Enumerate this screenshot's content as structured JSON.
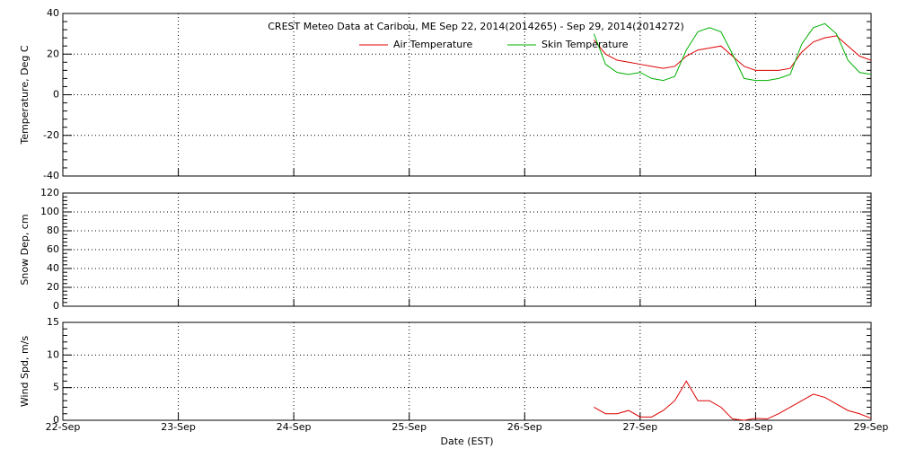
{
  "chart_data": [
    {
      "type": "line",
      "title": "CREST Meteo Data at Caribou, ME   Sep 22, 2014(2014265) - Sep 29, 2014(2014272)",
      "ylabel": "Temperature, Deg C",
      "xlim": [
        22,
        29
      ],
      "xticks": [
        22,
        23,
        24,
        25,
        26,
        27,
        28,
        29
      ],
      "ylim": [
        -40,
        40
      ],
      "yticks": [
        -40,
        -20,
        0,
        20,
        40
      ],
      "grid": true,
      "legend": "upper center",
      "x": [
        26.6,
        26.7,
        26.8,
        26.9,
        27.0,
        27.1,
        27.2,
        27.3,
        27.4,
        27.5,
        27.6,
        27.7,
        27.8,
        27.9,
        28.0,
        28.1,
        28.2,
        28.3,
        28.4,
        28.5,
        28.6,
        28.7,
        28.8,
        28.9,
        29.0
      ],
      "series": [
        {
          "name": "Air Temperature",
          "color": "#dd0000",
          "values": [
            27,
            20,
            17,
            16,
            15,
            14,
            13,
            14,
            19,
            22,
            23,
            24,
            19,
            14,
            12,
            12,
            12,
            13,
            21,
            26,
            28,
            29,
            24,
            19,
            17
          ]
        },
        {
          "name": "Skin Temperature",
          "color": "#00b000",
          "values": [
            30,
            15,
            11,
            10,
            11,
            8,
            7,
            9,
            22,
            31,
            33,
            31,
            20,
            8,
            7,
            7,
            8,
            10,
            25,
            33,
            35,
            30,
            17,
            11,
            10
          ]
        }
      ]
    },
    {
      "type": "line",
      "ylabel": "Snow Dep, cm",
      "xlim": [
        22,
        29
      ],
      "xticks": [
        22,
        23,
        24,
        25,
        26,
        27,
        28,
        29
      ],
      "ylim": [
        0,
        120
      ],
      "yticks": [
        0,
        20,
        40,
        60,
        80,
        100,
        120
      ],
      "grid": true,
      "series": []
    },
    {
      "type": "line",
      "ylabel": "Wind Spd, m/s",
      "xlabel": "Date (EST)",
      "xlim": [
        22,
        29
      ],
      "xticks": [
        {
          "value": 22,
          "label": "22-Sep"
        },
        {
          "value": 23,
          "label": "23-Sep"
        },
        {
          "value": 24,
          "label": "24-Sep"
        },
        {
          "value": 25,
          "label": "25-Sep"
        },
        {
          "value": 26,
          "label": "26-Sep"
        },
        {
          "value": 27,
          "label": "27-Sep"
        },
        {
          "value": 28,
          "label": "28-Sep"
        },
        {
          "value": 29,
          "label": "29-Sep"
        }
      ],
      "ylim": [
        0,
        15
      ],
      "yticks": [
        0,
        5,
        10,
        15
      ],
      "grid": true,
      "x": [
        26.6,
        26.7,
        26.8,
        26.9,
        27.0,
        27.1,
        27.2,
        27.3,
        27.4,
        27.5,
        27.6,
        27.7,
        27.8,
        27.9,
        28.0,
        28.1,
        28.2,
        28.3,
        28.4,
        28.5,
        28.6,
        28.7,
        28.8,
        28.9,
        29.0
      ],
      "series": [
        {
          "name": "Wind Speed",
          "color": "#dd0000",
          "values": [
            2,
            1,
            1,
            1.5,
            0.5,
            0.5,
            1.5,
            3,
            6,
            3,
            3,
            2,
            0.2,
            0,
            0.3,
            0.2,
            1,
            2,
            3,
            4,
            3.5,
            2.5,
            1.5,
            1,
            0.3
          ]
        }
      ]
    }
  ]
}
